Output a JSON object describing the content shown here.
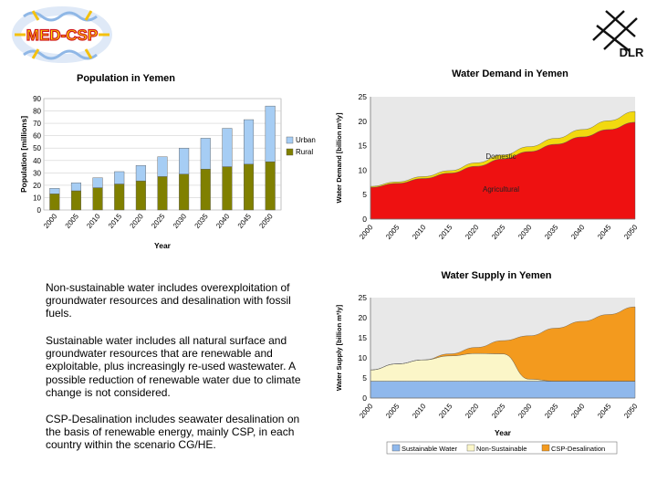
{
  "logos": {
    "med_csp": "MED-CSP",
    "dlr": "DLR"
  },
  "notes": [
    "Non-sustainable water includes overexploitation of groundwater resources and desalination with fossil fuels.",
    "Sustainable water includes all natural surface and groundwater resources that are renewable and exploitable, plus increasingly re-used wastewater. A possible reduction of renewable water due to climate change is not considered.",
    "CSP-Desalination includes seawater desalination on the basis of renewable energy, mainly CSP, in each country within the scenario CG/HE."
  ],
  "colors": {
    "urban": "#a6cdf4",
    "rural": "#808000",
    "demand_domestic": "#f2d90f",
    "demand_agricultural": "#ee1111",
    "supply_sustainable": "#8fb8ec",
    "supply_nonsustainable": "#fbf6c8",
    "supply_csp": "#f39a1e"
  },
  "chart_data": [
    {
      "type": "bar",
      "title": "Population in Yemen",
      "xlabel": "Year",
      "ylabel": "Population [millions]",
      "ylim": [
        0,
        90
      ],
      "yticks": [
        "0",
        "10",
        "20",
        "30",
        "40",
        "50",
        "60",
        "70",
        "80",
        "90"
      ],
      "stacked": true,
      "grid": true,
      "legend_position": "right",
      "categories": [
        "2000",
        "2005",
        "2010",
        "2015",
        "2020",
        "2025",
        "2030",
        "2035",
        "2040",
        "2045",
        "2050"
      ],
      "series": [
        {
          "name": "Rural",
          "color": "#808000",
          "values": [
            13,
            15.5,
            18,
            21,
            23.5,
            27,
            29,
            33,
            35,
            37,
            39
          ]
        },
        {
          "name": "Urban",
          "color": "#a6cdf4",
          "values": [
            4.5,
            6.5,
            8,
            10,
            12.5,
            16,
            21,
            25,
            31,
            36,
            45
          ]
        }
      ]
    },
    {
      "type": "area",
      "title": "Water Demand in Yemen",
      "ylabel": "Water Demand [billion m³/y]",
      "ylim": [
        0,
        25
      ],
      "yticks": [
        "0",
        "5",
        "10",
        "15",
        "20",
        "25"
      ],
      "stacked": true,
      "grid": false,
      "x": [
        "2000",
        "2005",
        "2010",
        "2015",
        "2020",
        "2025",
        "2030",
        "2035",
        "2040",
        "2045",
        "2050"
      ],
      "annotations": [
        "Domestic",
        "Agricultural"
      ],
      "series": [
        {
          "name": "Agricultural",
          "color": "#ee1111",
          "values": [
            6.5,
            7.3,
            8.3,
            9.4,
            10.8,
            12.3,
            13.8,
            15.3,
            16.8,
            18.3,
            19.8
          ]
        },
        {
          "name": "Domestic",
          "color": "#f2d90f",
          "values": [
            0.2,
            0.3,
            0.4,
            0.5,
            0.7,
            0.8,
            1.0,
            1.2,
            1.5,
            1.8,
            2.2
          ]
        }
      ]
    },
    {
      "type": "area",
      "title": "Water Supply in Yemen",
      "xlabel": "Year",
      "ylabel": "Water Supply [billion m³/y]",
      "ylim": [
        0,
        25
      ],
      "yticks": [
        "0",
        "5",
        "10",
        "15",
        "20",
        "25"
      ],
      "stacked": true,
      "grid": false,
      "legend_position": "bottom",
      "x": [
        "2000",
        "2005",
        "2010",
        "2015",
        "2020",
        "2025",
        "2030",
        "2035",
        "2040",
        "2045",
        "2050"
      ],
      "series": [
        {
          "name": "Sustainable Water",
          "color": "#8fb8ec",
          "values": [
            4.2,
            4.2,
            4.2,
            4.2,
            4.2,
            4.2,
            4.2,
            4.2,
            4.2,
            4.2,
            4.2
          ]
        },
        {
          "name": "Non-Sustainable",
          "color": "#fbf6c8",
          "values": [
            2.8,
            4.3,
            5.3,
            6.3,
            6.9,
            6.8,
            0.5,
            0,
            0,
            0,
            0
          ]
        },
        {
          "name": "CSP-Desalination",
          "color": "#f39a1e",
          "values": [
            0,
            0,
            0,
            0.5,
            1.5,
            3.3,
            10.8,
            13.2,
            14.9,
            16.6,
            18.5
          ]
        }
      ]
    }
  ]
}
